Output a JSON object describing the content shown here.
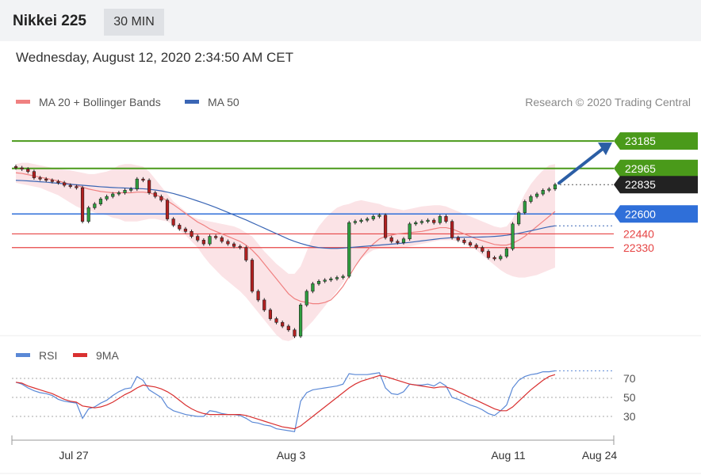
{
  "header": {
    "instrument": "Nikkei 225",
    "timeframe": "30 MIN",
    "datetime": "Wednesday, August 12, 2020 2:34:50 AM CET"
  },
  "colors": {
    "support": "#e64545",
    "resistance": "#4a9a1a",
    "pivot": "#2f6fd9",
    "ma20": "#f08080",
    "ma50": "#3a66b5",
    "band": "#fadadd",
    "rsi": "#5a88d6",
    "rsi_ma": "#d93030",
    "candle": "#222222",
    "arrow": "#2b5ea5"
  },
  "chart_data": [
    {
      "type": "candlestick",
      "legend": [
        {
          "label": "MA 20 + Bollinger Bands",
          "color": "#f08080"
        },
        {
          "label": "MA 50",
          "color": "#3a66b5"
        }
      ],
      "credit": "Research © 2020 Trading Central",
      "x_ticks": [
        "Jul 27",
        "Aug 3",
        "Aug 11",
        "Aug 24"
      ],
      "ylim": [
        21700,
        23300
      ],
      "levels": [
        {
          "value": 23185,
          "label": "23185",
          "kind": "resistance"
        },
        {
          "value": 22965,
          "label": "22965",
          "kind": "resistance"
        },
        {
          "value": 22835,
          "label": "22835",
          "kind": "last"
        },
        {
          "value": 22600,
          "label": "22600",
          "kind": "pivot"
        },
        {
          "value": 22440,
          "label": "22440",
          "kind": "support"
        },
        {
          "value": 22330,
          "label": "22330",
          "kind": "support"
        }
      ],
      "close": [
        22970,
        22960,
        22940,
        22890,
        22880,
        22870,
        22860,
        22850,
        22830,
        22820,
        22810,
        22540,
        22650,
        22680,
        22720,
        22740,
        22760,
        22770,
        22790,
        22800,
        22880,
        22870,
        22770,
        22740,
        22710,
        22560,
        22510,
        22480,
        22460,
        22420,
        22390,
        22360,
        22420,
        22410,
        22380,
        22360,
        22340,
        22330,
        22230,
        21980,
        21910,
        21830,
        21760,
        21730,
        21700,
        21670,
        21620,
        21870,
        21980,
        22040,
        22060,
        22070,
        22080,
        22090,
        22100,
        22530,
        22540,
        22550,
        22560,
        22580,
        22590,
        22410,
        22380,
        22370,
        22400,
        22520,
        22530,
        22540,
        22550,
        22530,
        22580,
        22540,
        22410,
        22390,
        22370,
        22350,
        22330,
        22300,
        22250,
        22240,
        22260,
        22320,
        22520,
        22610,
        22700,
        22740,
        22760,
        22790,
        22800,
        22835
      ],
      "ma20": [
        22930,
        22925,
        22915,
        22905,
        22895,
        22885,
        22875,
        22865,
        22850,
        22840,
        22830,
        22815,
        22800,
        22790,
        22780,
        22775,
        22770,
        22770,
        22770,
        22770,
        22775,
        22775,
        22770,
        22755,
        22735,
        22705,
        22675,
        22640,
        22605,
        22570,
        22535,
        22510,
        22480,
        22460,
        22440,
        22420,
        22400,
        22380,
        22350,
        22310,
        22260,
        22200,
        22140,
        22080,
        22020,
        21960,
        21920,
        21900,
        21890,
        21880,
        21880,
        21890,
        21910,
        21960,
        22020,
        22100,
        22180,
        22250,
        22310,
        22360,
        22400,
        22420,
        22430,
        22440,
        22445,
        22450,
        22455,
        22460,
        22470,
        22480,
        22490,
        22490,
        22480,
        22460,
        22440,
        22420,
        22400,
        22385,
        22370,
        22355,
        22350,
        22350,
        22365,
        22390,
        22420,
        22460,
        22500,
        22540,
        22580,
        22620
      ],
      "bb_upper": [
        23000,
        23010,
        23010,
        23000,
        22990,
        22980,
        22970,
        22960,
        22955,
        22950,
        22940,
        22930,
        22920,
        22920,
        22930,
        22940,
        22960,
        22990,
        23000,
        23000,
        22990,
        22980,
        22940,
        22880,
        22820,
        22760,
        22700,
        22660,
        22620,
        22580,
        22560,
        22550,
        22540,
        22530,
        22520,
        22510,
        22500,
        22480,
        22450,
        22420,
        22360,
        22300,
        22250,
        22200,
        22160,
        22120,
        22120,
        22180,
        22300,
        22420,
        22500,
        22560,
        22610,
        22650,
        22670,
        22680,
        22700,
        22710,
        22700,
        22690,
        22680,
        22660,
        22650,
        22640,
        22630,
        22640,
        22650,
        22660,
        22665,
        22670,
        22670,
        22660,
        22640,
        22620,
        22600,
        22580,
        22560,
        22540,
        22520,
        22500,
        22490,
        22500,
        22560,
        22660,
        22760,
        22840,
        22900,
        22950,
        22990,
        23000
      ],
      "bb_lower": [
        22850,
        22840,
        22830,
        22820,
        22810,
        22790,
        22770,
        22750,
        22720,
        22690,
        22660,
        22640,
        22630,
        22610,
        22600,
        22590,
        22570,
        22560,
        22540,
        22540,
        22540,
        22550,
        22560,
        22560,
        22550,
        22540,
        22510,
        22470,
        22430,
        22380,
        22330,
        22260,
        22200,
        22150,
        22100,
        22060,
        22020,
        21980,
        21930,
        21870,
        21810,
        21750,
        21690,
        21630,
        21590,
        21580,
        21600,
        21640,
        21690,
        21740,
        21800,
        21860,
        21920,
        21980,
        22050,
        22120,
        22190,
        22240,
        22280,
        22310,
        22320,
        22320,
        22320,
        22320,
        22330,
        22340,
        22350,
        22360,
        22370,
        22380,
        22390,
        22390,
        22390,
        22380,
        22360,
        22340,
        22310,
        22270,
        22230,
        22190,
        22150,
        22120,
        22100,
        22090,
        22090,
        22100,
        22110,
        22130,
        22150,
        22170
      ],
      "ma50": [
        22870,
        22868,
        22865,
        22862,
        22858,
        22855,
        22850,
        22846,
        22842,
        22838,
        22834,
        22830,
        22826,
        22822,
        22818,
        22815,
        22812,
        22810,
        22808,
        22806,
        22804,
        22802,
        22798,
        22792,
        22785,
        22775,
        22764,
        22750,
        22736,
        22720,
        22704,
        22688,
        22670,
        22652,
        22632,
        22612,
        22592,
        22572,
        22552,
        22530,
        22508,
        22486,
        22464,
        22442,
        22420,
        22398,
        22380,
        22364,
        22350,
        22338,
        22330,
        22326,
        22324,
        22324,
        22326,
        22330,
        22334,
        22338,
        22342,
        22346,
        22350,
        22354,
        22358,
        22362,
        22367,
        22372,
        22378,
        22384,
        22390,
        22396,
        22402,
        22406,
        22410,
        22412,
        22414,
        22414,
        22414,
        22415,
        22417,
        22420,
        22424,
        22429,
        22436,
        22445,
        22455,
        22465,
        22476,
        22487,
        22497,
        22505
      ]
    },
    {
      "type": "line",
      "legend": [
        {
          "label": "RSI",
          "color": "#5a88d6"
        },
        {
          "label": "9MA",
          "color": "#d93030"
        }
      ],
      "ylim": [
        10,
        90
      ],
      "y_ticks": [
        70,
        50,
        30
      ],
      "rsi": [
        66,
        64,
        60,
        57,
        55,
        54,
        52,
        48,
        46,
        45,
        44,
        28,
        38,
        40,
        44,
        47,
        52,
        56,
        59,
        60,
        72,
        68,
        58,
        54,
        50,
        40,
        36,
        34,
        32,
        31,
        30,
        30,
        36,
        35,
        33,
        32,
        32,
        31,
        28,
        24,
        23,
        21,
        20,
        17,
        16,
        15,
        14,
        46,
        55,
        58,
        59,
        60,
        61,
        62,
        64,
        75,
        74,
        74,
        74,
        75,
        76,
        60,
        54,
        53,
        56,
        64,
        63,
        63,
        64,
        62,
        66,
        62,
        50,
        48,
        45,
        42,
        40,
        37,
        33,
        31,
        36,
        42,
        60,
        68,
        72,
        74,
        75,
        77,
        77,
        78
      ],
      "rsi_ma": [
        66,
        65,
        62,
        60,
        58,
        56,
        54,
        51,
        48,
        46,
        45,
        41,
        40,
        39,
        40,
        42,
        45,
        49,
        53,
        56,
        60,
        63,
        62,
        61,
        59,
        56,
        52,
        47,
        42,
        38,
        35,
        33,
        32,
        32,
        32,
        32,
        32,
        32,
        31,
        29,
        27,
        25,
        23,
        21,
        19,
        18,
        17,
        20,
        25,
        30,
        35,
        40,
        45,
        50,
        55,
        60,
        64,
        67,
        69,
        71,
        73,
        72,
        70,
        68,
        66,
        64,
        63,
        62,
        61,
        60,
        61,
        61,
        59,
        56,
        53,
        50,
        47,
        44,
        41,
        38,
        36,
        36,
        40,
        46,
        52,
        58,
        63,
        68,
        72,
        74
      ]
    }
  ]
}
